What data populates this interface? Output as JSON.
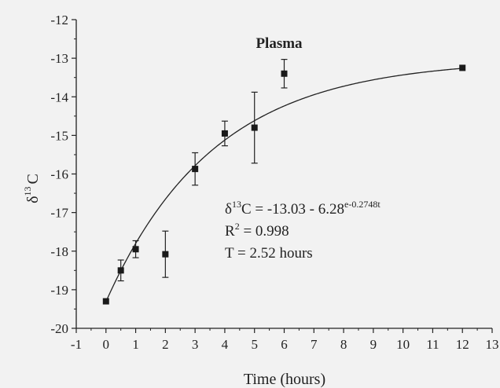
{
  "chart_data": {
    "type": "scatter",
    "title": "Plasma",
    "xlabel": "Time (hours)",
    "ylabel": {
      "main": "δ",
      "sup": "13",
      "tail": "C"
    },
    "xlim": [
      -1,
      13
    ],
    "ylim": [
      -20,
      -12
    ],
    "xticks": [
      -1,
      0,
      1,
      2,
      3,
      4,
      5,
      6,
      7,
      8,
      9,
      10,
      11,
      12,
      13
    ],
    "yticks": [
      -20,
      -19,
      -18,
      -17,
      -16,
      -15,
      -14,
      -13,
      -12
    ],
    "grid": false,
    "points": [
      {
        "x": 0,
        "y": -19.3,
        "err": 0
      },
      {
        "x": 0.5,
        "y": -18.5,
        "err": 0.27
      },
      {
        "x": 1,
        "y": -17.95,
        "err": 0.22
      },
      {
        "x": 2,
        "y": -18.08,
        "err": 0.6
      },
      {
        "x": 3,
        "y": -15.87,
        "err": 0.42
      },
      {
        "x": 4,
        "y": -14.95,
        "err": 0.32
      },
      {
        "x": 5,
        "y": -14.8,
        "err": 0.92
      },
      {
        "x": 6,
        "y": -13.4,
        "err": 0.37
      },
      {
        "x": 12,
        "y": -13.25,
        "err": 0
      }
    ],
    "fit": {
      "a": -13.03,
      "b": 6.28,
      "k": 0.2748
    },
    "annotation": {
      "line1_main": "δ",
      "line1_sup1": "13",
      "line1_mid": "C = -13.03 - 6.28",
      "line1_sup2": "e-0.2748t",
      "line2_main": "R",
      "line2_sup": "2",
      "line2_tail": " = 0.998",
      "line3": "T = 2.52 hours"
    }
  }
}
